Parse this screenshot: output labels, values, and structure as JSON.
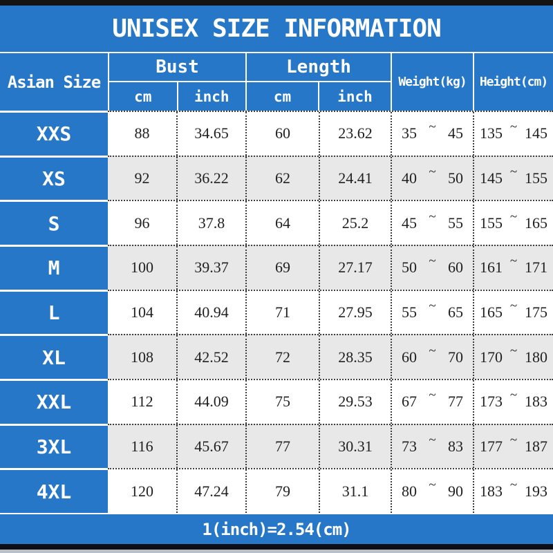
{
  "title": "UNISEX SIZE INFORMATION",
  "table": {
    "corner_header": "Asian Size",
    "bust_header": "Bust",
    "length_header": "Length",
    "weight_header": "Weight(kg)",
    "height_header": "Height(cm)",
    "unit_cm": "cm",
    "unit_inch": "inch",
    "tilde": "~",
    "rows": [
      {
        "size": "XXS",
        "bust_cm": "88",
        "bust_inch": "34.65",
        "length_cm": "60",
        "length_inch": "23.62",
        "weight_min": "35",
        "weight_max": "45",
        "height_min": "135",
        "height_max": "145"
      },
      {
        "size": "XS",
        "bust_cm": "92",
        "bust_inch": "36.22",
        "length_cm": "62",
        "length_inch": "24.41",
        "weight_min": "40",
        "weight_max": "50",
        "height_min": "145",
        "height_max": "155"
      },
      {
        "size": "S",
        "bust_cm": "96",
        "bust_inch": "37.8",
        "length_cm": "64",
        "length_inch": "25.2",
        "weight_min": "45",
        "weight_max": "55",
        "height_min": "155",
        "height_max": "165"
      },
      {
        "size": "M",
        "bust_cm": "100",
        "bust_inch": "39.37",
        "length_cm": "69",
        "length_inch": "27.17",
        "weight_min": "50",
        "weight_max": "60",
        "height_min": "161",
        "height_max": "171"
      },
      {
        "size": "L",
        "bust_cm": "104",
        "bust_inch": "40.94",
        "length_cm": "71",
        "length_inch": "27.95",
        "weight_min": "55",
        "weight_max": "65",
        "height_min": "165",
        "height_max": "175"
      },
      {
        "size": "XL",
        "bust_cm": "108",
        "bust_inch": "42.52",
        "length_cm": "72",
        "length_inch": "28.35",
        "weight_min": "60",
        "weight_max": "70",
        "height_min": "170",
        "height_max": "180"
      },
      {
        "size": "XXL",
        "bust_cm": "112",
        "bust_inch": "44.09",
        "length_cm": "75",
        "length_inch": "29.53",
        "weight_min": "67",
        "weight_max": "77",
        "height_min": "173",
        "height_max": "183"
      },
      {
        "size": "3XL",
        "bust_cm": "116",
        "bust_inch": "45.67",
        "length_cm": "77",
        "length_inch": "30.31",
        "weight_min": "73",
        "weight_max": "83",
        "height_min": "177",
        "height_max": "187"
      },
      {
        "size": "4XL",
        "bust_cm": "120",
        "bust_inch": "47.24",
        "length_cm": "79",
        "length_inch": "31.1",
        "weight_min": "80",
        "weight_max": "90",
        "height_min": "183",
        "height_max": "193"
      }
    ]
  },
  "footer_note": "1(inch)=2.54(cm)",
  "colors": {
    "accent_blue": "#2777c8",
    "row_alt_gray": "#e8e8e8",
    "row_white": "#ffffff",
    "separator_white": "#ffffff",
    "dotted_line": "#3c3c3c",
    "text_dark": "#1f1f1f",
    "top_bottom_bar_black": "#141414"
  },
  "chart_data": {
    "type": "table",
    "title": "UNISEX SIZE INFORMATION",
    "columns": [
      "Asian Size",
      "Bust cm",
      "Bust inch",
      "Length cm",
      "Length inch",
      "Weight(kg)",
      "Height(cm)"
    ],
    "rows": [
      [
        "XXS",
        "88",
        "34.65",
        "60",
        "23.62",
        "35~45",
        "135~145"
      ],
      [
        "XS",
        "92",
        "36.22",
        "62",
        "24.41",
        "40~50",
        "145~155"
      ],
      [
        "S",
        "96",
        "37.8",
        "64",
        "25.2",
        "45~55",
        "155~165"
      ],
      [
        "M",
        "100",
        "39.37",
        "69",
        "27.17",
        "50~60",
        "161~171"
      ],
      [
        "L",
        "104",
        "40.94",
        "71",
        "27.95",
        "55~65",
        "165~175"
      ],
      [
        "XL",
        "108",
        "42.52",
        "72",
        "28.35",
        "60~70",
        "170~180"
      ],
      [
        "XXL",
        "112",
        "44.09",
        "75",
        "29.53",
        "67~77",
        "173~183"
      ],
      [
        "3XL",
        "116",
        "45.67",
        "77",
        "30.31",
        "73~83",
        "177~187"
      ],
      [
        "4XL",
        "120",
        "47.24",
        "79",
        "31.1",
        "80~90",
        "183~193"
      ]
    ],
    "note": "1(inch)=2.54(cm)",
    "legend_position": "none",
    "grid": "dotted"
  }
}
